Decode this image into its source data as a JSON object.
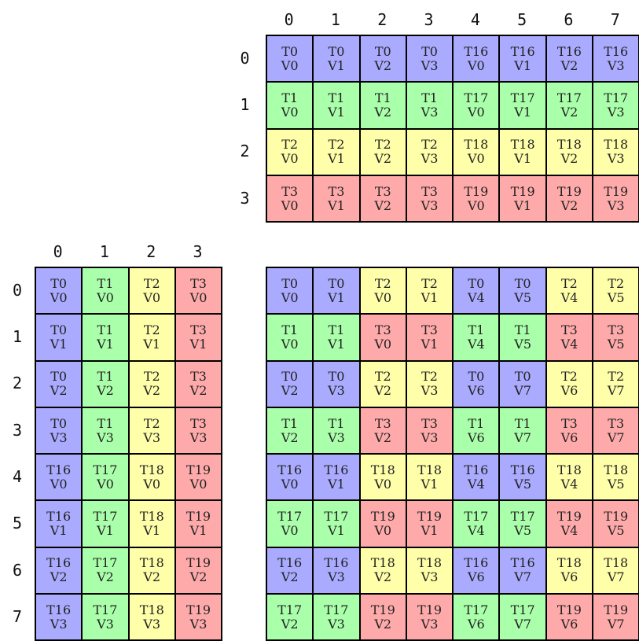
{
  "colors": {
    "blue": "#aaaaff",
    "green": "#aaffaa",
    "yellow": "#ffffaa",
    "red": "#ffaaaa",
    "border": "#000000",
    "text": "#222222"
  },
  "thread_colors": {
    "T0": "blue",
    "T1": "green",
    "T2": "yellow",
    "T3": "red",
    "T16": "blue",
    "T17": "green",
    "T18": "yellow",
    "T19": "red"
  },
  "grids": [
    {
      "id": "top-right",
      "col_headers": [
        "0",
        "1",
        "2",
        "3",
        "4",
        "5",
        "6",
        "7"
      ],
      "row_headers": [
        "0",
        "1",
        "2",
        "3"
      ],
      "cells": [
        [
          "T0 V0",
          "T0 V1",
          "T0 V2",
          "T0 V3",
          "T16 V0",
          "T16 V1",
          "T16 V2",
          "T16 V3"
        ],
        [
          "T1 V0",
          "T1 V1",
          "T1 V2",
          "T1 V3",
          "T17 V0",
          "T17 V1",
          "T17 V2",
          "T17 V3"
        ],
        [
          "T2 V0",
          "T2 V1",
          "T2 V2",
          "T2 V3",
          "T18 V0",
          "T18 V1",
          "T18 V2",
          "T18 V3"
        ],
        [
          "T3 V0",
          "T3 V1",
          "T3 V2",
          "T3 V3",
          "T19 V0",
          "T19 V1",
          "T19 V2",
          "T19 V3"
        ]
      ]
    },
    {
      "id": "bottom-left",
      "col_headers": [
        "0",
        "1",
        "2",
        "3"
      ],
      "row_headers": [
        "0",
        "1",
        "2",
        "3",
        "4",
        "5",
        "6",
        "7"
      ],
      "cells": [
        [
          "T0 V0",
          "T1 V0",
          "T2 V0",
          "T3 V0"
        ],
        [
          "T0 V1",
          "T1 V1",
          "T2 V1",
          "T3 V1"
        ],
        [
          "T0 V2",
          "T1 V2",
          "T2 V2",
          "T3 V2"
        ],
        [
          "T0 V3",
          "T1 V3",
          "T2 V3",
          "T3 V3"
        ],
        [
          "T16 V0",
          "T17 V0",
          "T18 V0",
          "T19 V0"
        ],
        [
          "T16 V1",
          "T17 V1",
          "T18 V1",
          "T19 V1"
        ],
        [
          "T16 V2",
          "T17 V2",
          "T18 V2",
          "T19 V2"
        ],
        [
          "T16 V3",
          "T17 V3",
          "T18 V3",
          "T19 V3"
        ]
      ]
    },
    {
      "id": "bottom-right",
      "col_headers": [],
      "row_headers": [],
      "cells": [
        [
          "T0 V0",
          "T0 V1",
          "T2 V0",
          "T2 V1",
          "T0 V4",
          "T0 V5",
          "T2 V4",
          "T2 V5"
        ],
        [
          "T1 V0",
          "T1 V1",
          "T3 V0",
          "T3 V1",
          "T1 V4",
          "T1 V5",
          "T3 V4",
          "T3 V5"
        ],
        [
          "T0 V2",
          "T0 V3",
          "T2 V2",
          "T2 V3",
          "T0 V6",
          "T0 V7",
          "T2 V6",
          "T2 V7"
        ],
        [
          "T1 V2",
          "T1 V3",
          "T3 V2",
          "T3 V3",
          "T1 V6",
          "T1 V7",
          "T3 V6",
          "T3 V7"
        ],
        [
          "T16 V0",
          "T16 V1",
          "T18 V0",
          "T18 V1",
          "T16 V4",
          "T16 V5",
          "T18 V4",
          "T18 V5"
        ],
        [
          "T17 V0",
          "T17 V1",
          "T19 V0",
          "T19 V1",
          "T17 V4",
          "T17 V5",
          "T19 V4",
          "T19 V5"
        ],
        [
          "T16 V2",
          "T16 V3",
          "T18 V2",
          "T18 V3",
          "T16 V6",
          "T16 V7",
          "T18 V6",
          "T18 V7"
        ],
        [
          "T17 V2",
          "T17 V3",
          "T19 V2",
          "T19 V3",
          "T17 V6",
          "T17 V7",
          "T19 V6",
          "T19 V7"
        ]
      ]
    }
  ]
}
